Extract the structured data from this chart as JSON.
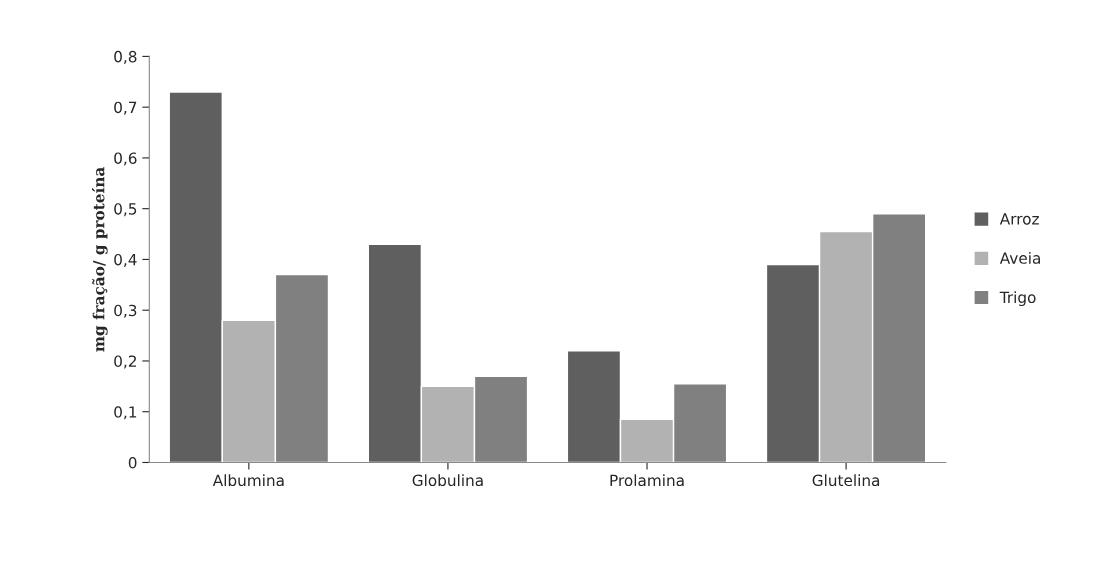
{
  "chart_data": {
    "type": "bar",
    "ylabel": "mg fração/ g proteína",
    "categories": [
      "Albumina",
      "Globulina",
      "Prolamina",
      "Glutelina"
    ],
    "series": [
      {
        "name": "Arroz",
        "color": "#5f5f5f",
        "values": [
          0.73,
          0.43,
          0.22,
          0.39
        ]
      },
      {
        "name": "Aveia",
        "color": "#b2b2b2",
        "values": [
          0.28,
          0.15,
          0.085,
          0.455
        ]
      },
      {
        "name": "Trigo",
        "color": "#808080",
        "values": [
          0.37,
          0.17,
          0.155,
          0.49
        ]
      }
    ],
    "ylim": [
      0,
      0.8
    ],
    "yticks": [
      0,
      {
        "value": 0.1,
        "label": "0,1"
      },
      {
        "value": 0.2,
        "label": "0,2"
      },
      {
        "value": 0.3,
        "label": "0,3"
      },
      {
        "value": 0.4,
        "label": "0,4"
      },
      {
        "value": 0.5,
        "label": "0,5"
      },
      {
        "value": 0.6,
        "label": "0,6"
      },
      {
        "value": 0.7,
        "label": "0,7"
      },
      {
        "value": 0.8,
        "label": "0,8"
      }
    ],
    "grid": false,
    "legend": "right"
  }
}
